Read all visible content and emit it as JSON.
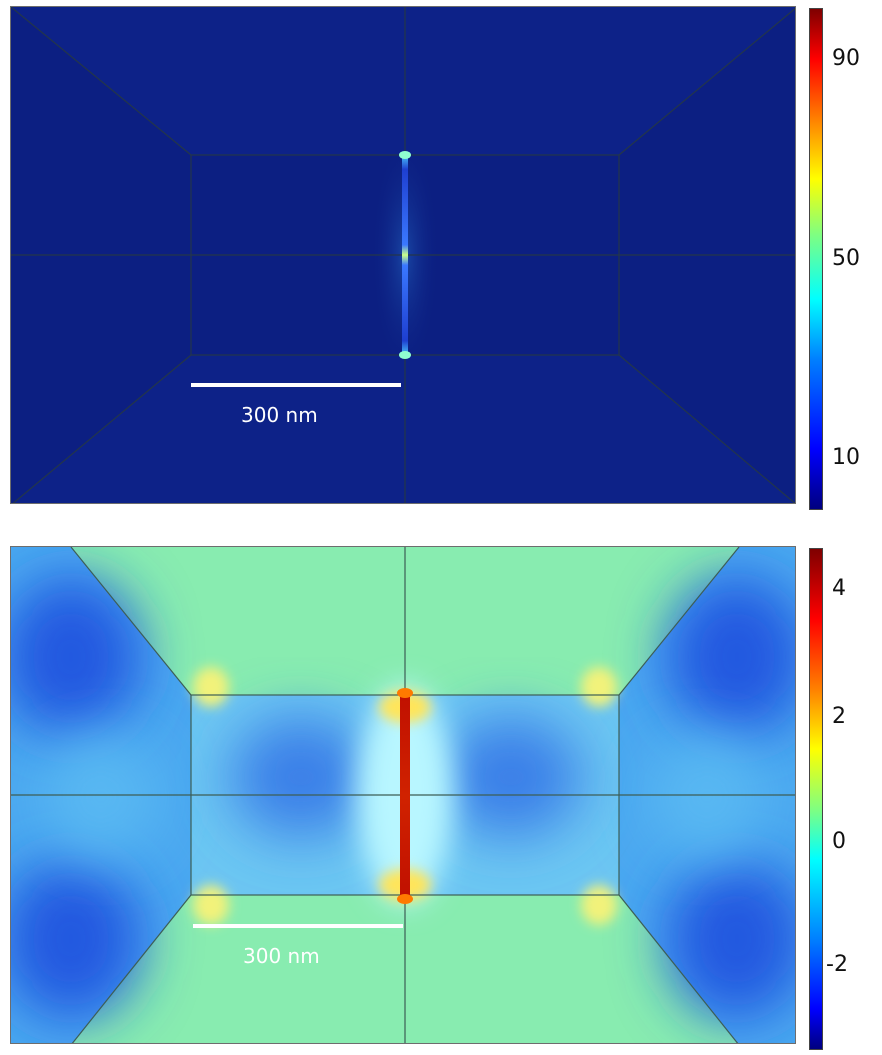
{
  "figure": {
    "panels": [
      {
        "id": "top",
        "scale_bar": {
          "label": "300 nm"
        },
        "colorbar": {
          "min": 0,
          "max": 100,
          "ticks": [
            {
              "value": 90,
              "label": "90"
            },
            {
              "value": 50,
              "label": "50"
            },
            {
              "value": 10,
              "label": "10"
            }
          ]
        }
      },
      {
        "id": "bottom",
        "scale_bar": {
          "label": "300 nm"
        },
        "colorbar": {
          "min": -3.5,
          "max": 4.6,
          "ticks": [
            {
              "value": 4,
              "label": "4"
            },
            {
              "value": 2,
              "label": "2"
            },
            {
              "value": 0,
              "label": "0"
            },
            {
              "value": -2,
              "label": "-2"
            }
          ]
        }
      }
    ],
    "colormap": "jet",
    "colors": {
      "jet_stops": [
        "#00007f",
        "#0000ff",
        "#0080ff",
        "#00ffff",
        "#80ff80",
        "#ffff00",
        "#ff8000",
        "#ff0000",
        "#7f0000"
      ],
      "top_background": "#0c1f82",
      "bottom_inner": "#88ecb0",
      "mesh_line": "#24364a"
    }
  }
}
